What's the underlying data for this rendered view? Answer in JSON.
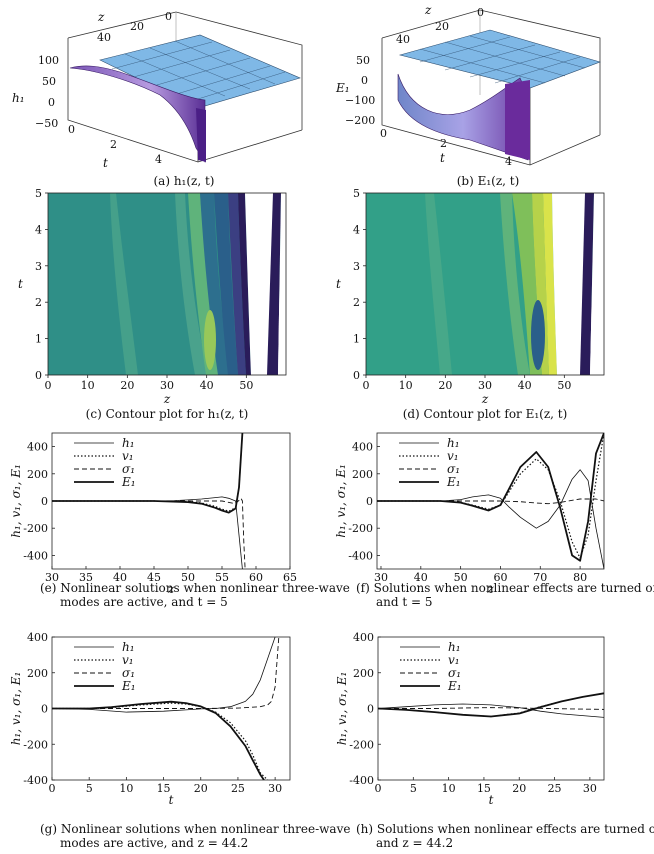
{
  "captions": {
    "a": "(a) h₁(z, t)",
    "b": "(b) E₁(z, t)",
    "c": "(c) Contour plot for h₁(z, t)",
    "d": "(d) Contour plot for E₁(z, t)",
    "e1": "(e) Nonlinear solutions when nonlinear three-wave",
    "e2": "modes are active, and t = 5",
    "f1": "(f) Solutions when nonlinear effects are turned off,",
    "f2": "and t = 5",
    "g1": "(g) Nonlinear solutions when nonlinear three-wave",
    "g2": "modes are active, and z = 44.2",
    "h1": "(h) Solutions when nonlinear effects are turned off,",
    "h2": "and z = 44.2"
  },
  "colors": {
    "surface_flat": "#7fb8e6",
    "surface_deep": "#6a3fa0",
    "contour_base": "#2f8f87"
  },
  "chart_data": [
    {
      "id": "a",
      "type": "surface",
      "xlabel": "z",
      "ylabel": "t",
      "zlabel": "h₁",
      "x_ticks": [
        "40",
        "20",
        "0"
      ],
      "y_ticks": [
        "0",
        "2",
        "4"
      ],
      "z_ticks": [
        "100",
        "50",
        "0",
        "−50"
      ]
    },
    {
      "id": "b",
      "type": "surface",
      "xlabel": "z",
      "ylabel": "t",
      "zlabel": "E₁",
      "x_ticks": [
        "40",
        "20",
        "0"
      ],
      "y_ticks": [
        "0",
        "2",
        "4"
      ],
      "z_ticks": [
        "50",
        "0",
        "−100",
        "−200"
      ]
    },
    {
      "id": "c",
      "type": "heatmap",
      "xlabel": "z",
      "ylabel": "t",
      "xlim": [
        0,
        60
      ],
      "ylim": [
        0,
        5
      ],
      "x_ticks": [
        0,
        10,
        20,
        30,
        40,
        50
      ],
      "y_ticks": [
        0,
        1,
        2,
        3,
        4,
        5
      ]
    },
    {
      "id": "d",
      "type": "heatmap",
      "xlabel": "z",
      "ylabel": "t",
      "xlim": [
        0,
        60
      ],
      "ylim": [
        0,
        5
      ],
      "x_ticks": [
        0,
        10,
        20,
        30,
        40,
        50
      ],
      "y_ticks": [
        0,
        1,
        2,
        3,
        4,
        5
      ]
    },
    {
      "id": "e",
      "type": "line",
      "xlabel": "z",
      "ylabel": "h₁, v₁, σ₁, E₁",
      "xlim": [
        30,
        65
      ],
      "ylim": [
        -500,
        500
      ],
      "x_ticks": [
        30,
        35,
        40,
        45,
        50,
        55,
        60,
        65
      ],
      "y_ticks": [
        -400,
        -200,
        0,
        200,
        400
      ],
      "series": [
        {
          "name": "h₁",
          "x": [
            30,
            40,
            45,
            48,
            50,
            52,
            54,
            55,
            56,
            57,
            58
          ],
          "y": [
            0,
            0,
            0,
            3,
            8,
            15,
            25,
            30,
            20,
            0,
            -500
          ]
        },
        {
          "name": "v₁",
          "x": [
            30,
            45,
            50,
            52,
            54,
            55,
            56,
            57,
            57.5,
            58
          ],
          "y": [
            0,
            0,
            -5,
            -15,
            -40,
            -60,
            -75,
            -50,
            100,
            500
          ]
        },
        {
          "name": "σ₁",
          "x": [
            30,
            50,
            55,
            56,
            57,
            57.8,
            58,
            58.2,
            58.4
          ],
          "y": [
            0,
            0,
            0,
            -10,
            -20,
            20,
            0,
            -300,
            -500
          ]
        },
        {
          "name": "E₁",
          "x": [
            30,
            45,
            50,
            52,
            54,
            55,
            56,
            57,
            57.5,
            58
          ],
          "y": [
            0,
            0,
            -8,
            -20,
            -50,
            -70,
            -85,
            -55,
            100,
            500
          ]
        }
      ]
    },
    {
      "id": "f",
      "type": "line",
      "xlabel": "z",
      "ylabel": "h₁, v₁, σ₁, E₁",
      "xlim": [
        29,
        86
      ],
      "ylim": [
        -500,
        500
      ],
      "x_ticks": [
        30,
        40,
        50,
        60,
        70,
        80
      ],
      "y_ticks": [
        -400,
        -200,
        0,
        200,
        400
      ],
      "series": [
        {
          "name": "h₁",
          "x": [
            29,
            45,
            50,
            53,
            57,
            60,
            62,
            65,
            69,
            72,
            75,
            78,
            80,
            82,
            84,
            86
          ],
          "y": [
            0,
            0,
            10,
            30,
            45,
            20,
            -40,
            -120,
            -200,
            -150,
            -30,
            160,
            230,
            150,
            -200,
            -500
          ]
        },
        {
          "name": "v₁",
          "x": [
            29,
            45,
            50,
            53,
            57,
            60,
            62,
            65,
            69,
            72,
            75,
            78,
            80,
            82,
            84,
            86
          ],
          "y": [
            0,
            0,
            -10,
            -30,
            -60,
            -30,
            60,
            200,
            310,
            230,
            0,
            -300,
            -420,
            -250,
            150,
            500
          ]
        },
        {
          "name": "σ₁",
          "x": [
            29,
            50,
            60,
            65,
            69,
            72,
            75,
            78,
            80,
            84,
            86
          ],
          "y": [
            0,
            0,
            0,
            -5,
            -15,
            -20,
            -10,
            5,
            15,
            15,
            0
          ]
        },
        {
          "name": "E₁",
          "x": [
            29,
            45,
            50,
            53,
            57,
            60,
            62,
            65,
            69,
            72,
            75,
            78,
            80,
            82,
            84,
            86
          ],
          "y": [
            0,
            0,
            -12,
            -35,
            -70,
            -30,
            80,
            250,
            360,
            250,
            -50,
            -400,
            -440,
            -150,
            350,
            500
          ]
        }
      ]
    },
    {
      "id": "g",
      "type": "line",
      "xlabel": "t",
      "ylabel": "h₁, v₁, σ₁, E₁",
      "xlim": [
        0,
        32
      ],
      "ylim": [
        -400,
        400
      ],
      "x_ticks": [
        0,
        5,
        10,
        15,
        20,
        25,
        30
      ],
      "y_ticks": [
        -400,
        -200,
        0,
        200,
        400
      ],
      "series": [
        {
          "name": "h₁",
          "x": [
            0,
            5,
            10,
            15,
            18,
            20,
            22,
            24,
            26,
            27,
            28,
            29,
            30
          ],
          "y": [
            0,
            -5,
            -20,
            -15,
            -8,
            -2,
            0,
            10,
            40,
            80,
            160,
            280,
            400
          ]
        },
        {
          "name": "v₁",
          "x": [
            0,
            5,
            8,
            12,
            16,
            18,
            20,
            22,
            24,
            26,
            27,
            28,
            29
          ],
          "y": [
            0,
            0,
            5,
            20,
            30,
            25,
            10,
            -20,
            -80,
            -180,
            -260,
            -360,
            -400
          ]
        },
        {
          "name": "σ₁",
          "x": [
            0,
            10,
            20,
            25,
            28,
            29,
            29.5,
            30,
            30.5
          ],
          "y": [
            0,
            0,
            0,
            2,
            10,
            20,
            40,
            120,
            400
          ]
        },
        {
          "name": "E₁",
          "x": [
            0,
            5,
            8,
            12,
            16,
            18,
            20,
            22,
            24,
            26,
            27,
            28,
            28.5
          ],
          "y": [
            0,
            0,
            8,
            25,
            38,
            30,
            12,
            -25,
            -100,
            -210,
            -290,
            -370,
            -400
          ]
        }
      ]
    },
    {
      "id": "h",
      "type": "line",
      "xlabel": "t",
      "ylabel": "h₁, v₁, σ₁, E₁",
      "xlim": [
        0,
        32
      ],
      "ylim": [
        -400,
        400
      ],
      "x_ticks": [
        0,
        5,
        10,
        15,
        20,
        25,
        30
      ],
      "y_ticks": [
        -400,
        -200,
        0,
        200,
        400
      ],
      "series": [
        {
          "name": "h₁",
          "x": [
            0,
            4,
            8,
            12,
            16,
            20,
            23,
            26,
            29,
            32
          ],
          "y": [
            0,
            10,
            20,
            25,
            20,
            5,
            -15,
            -30,
            -40,
            -50
          ]
        },
        {
          "name": "v₁",
          "x": [
            0,
            4,
            8,
            12,
            16,
            20,
            23,
            26,
            29,
            32
          ],
          "y": [
            0,
            -8,
            -20,
            -35,
            -45,
            -25,
            10,
            40,
            65,
            85
          ]
        },
        {
          "name": "σ₁",
          "x": [
            0,
            8,
            12,
            16,
            20,
            24,
            28,
            32
          ],
          "y": [
            0,
            0,
            3,
            5,
            3,
            0,
            -3,
            -5
          ]
        },
        {
          "name": "E₁",
          "x": [
            0,
            4,
            8,
            12,
            16,
            20,
            23,
            26,
            29,
            32
          ],
          "y": [
            0,
            -8,
            -20,
            -35,
            -45,
            -28,
            8,
            40,
            65,
            85
          ]
        }
      ]
    }
  ]
}
